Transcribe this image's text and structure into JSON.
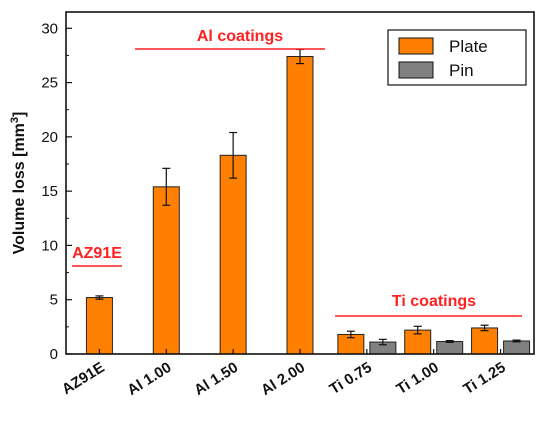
{
  "chart_data": {
    "type": "bar",
    "xlabel": "",
    "ylabel": "Volume loss [mm",
    "ylabel_sup": "3",
    "ylabel_end": "]",
    "ylim": [
      0,
      31.5
    ],
    "yticks": [
      0,
      5,
      10,
      15,
      20,
      25,
      30
    ],
    "grid": false,
    "legend_position": "top-right",
    "categories": [
      "AZ91E",
      "Al 1.00",
      "Al 1.50",
      "Al 2.00",
      "Ti 0.75",
      "Ti 1.00",
      "Ti 1.25"
    ],
    "series": [
      {
        "name": "Plate",
        "color": "#ff8000",
        "values": [
          5.2,
          15.4,
          18.3,
          27.4,
          1.8,
          2.2,
          2.4
        ],
        "errors": [
          0.15,
          1.7,
          2.1,
          0.65,
          0.3,
          0.35,
          0.25
        ]
      },
      {
        "name": "Pin",
        "color": "#808080",
        "values": [
          null,
          null,
          null,
          null,
          1.1,
          1.15,
          1.2
        ],
        "errors": [
          null,
          null,
          null,
          null,
          0.25,
          0.08,
          0.08
        ]
      }
    ],
    "annotations": [
      {
        "text": "AZ91E",
        "color": "#ff2020"
      },
      {
        "text": "Al coatings",
        "color": "#ff2020"
      },
      {
        "text": "Ti coatings",
        "color": "#ff2020"
      }
    ]
  }
}
